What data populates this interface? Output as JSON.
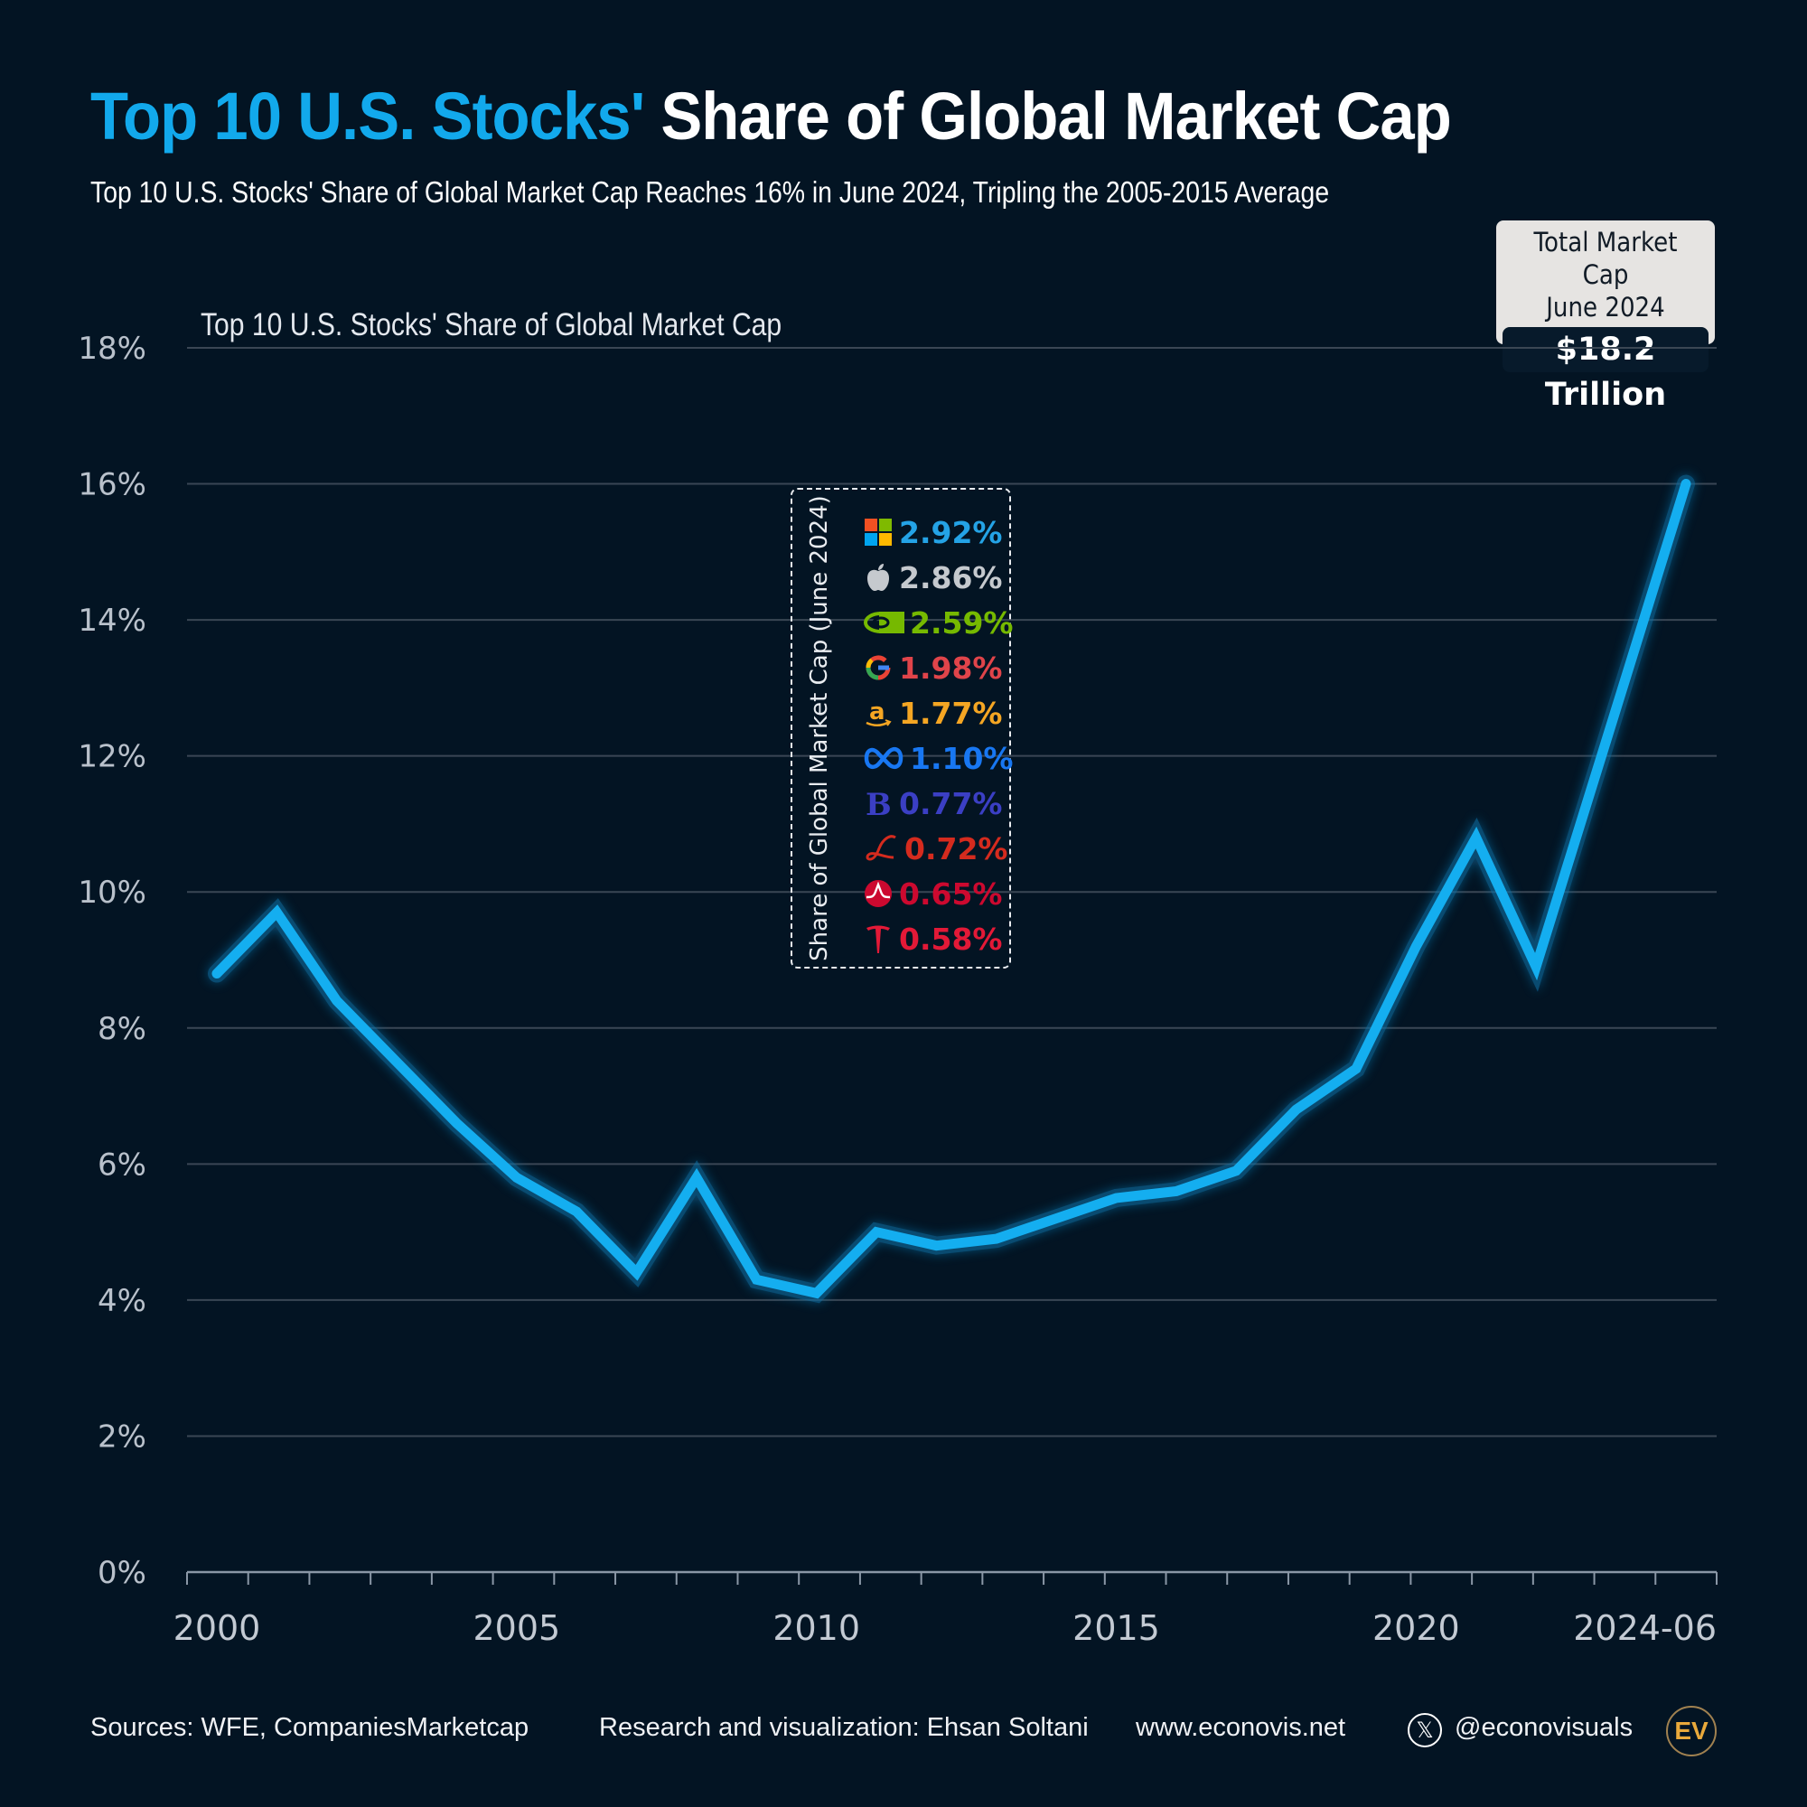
{
  "header": {
    "title_accent": "Top 10 U.S. Stocks'",
    "title_rest": "Share of Global Market Cap",
    "subtitle": "Top 10 U.S. Stocks' Share of Global Market Cap Reaches 16% in June 2024, Tripling the 2005-2015 Average"
  },
  "total_box": {
    "label_line1": "Total Market Cap",
    "label_line2": "June 2024",
    "value": "$18.2 Trillion"
  },
  "legend": {
    "title": "Share of Global Market Cap (June 2024)",
    "items": [
      {
        "company": "Microsoft",
        "icon": "microsoft-logo-icon",
        "value": "2.92%",
        "color": "#24a3e6"
      },
      {
        "company": "Apple",
        "icon": "apple-logo-icon",
        "value": "2.86%",
        "color": "#c5c9ce"
      },
      {
        "company": "Nvidia",
        "icon": "nvidia-logo-icon",
        "value": "2.59%",
        "color": "#76b900"
      },
      {
        "company": "Alphabet",
        "icon": "google-logo-icon",
        "value": "1.98%",
        "color": "#e0444a"
      },
      {
        "company": "Amazon",
        "icon": "amazon-logo-icon",
        "value": "1.77%",
        "color": "#f5a623"
      },
      {
        "company": "Meta",
        "icon": "meta-logo-icon",
        "value": "1.10%",
        "color": "#1877f2"
      },
      {
        "company": "Berkshire Hathaway",
        "icon": "berkshire-logo-icon",
        "value": "0.77%",
        "color": "#3b3fc4"
      },
      {
        "company": "Eli Lilly",
        "icon": "eli-lilly-logo-icon",
        "value": "0.72%",
        "color": "#d52b1e"
      },
      {
        "company": "Broadcom",
        "icon": "broadcom-logo-icon",
        "value": "0.65%",
        "color": "#cc092f"
      },
      {
        "company": "Tesla",
        "icon": "tesla-logo-icon",
        "value": "0.58%",
        "color": "#e31937"
      }
    ]
  },
  "footer": {
    "sources": "Sources: WFE, CompaniesMarketcap",
    "credit": "Research and visualization: Ehsan Soltani",
    "website": "www.econovis.net",
    "social_icon": "x-logo-icon",
    "social_handle": "@econovisuals",
    "brand_logo": "EV"
  },
  "colors": {
    "background": "#031423",
    "accent": "#12a9ec",
    "line": "#14aef0",
    "grid": "#3a4654"
  },
  "chart_data": {
    "type": "line",
    "title": "Top 10 U.S. Stocks' Share of Global Market Cap",
    "xlabel": "",
    "ylabel": "",
    "x": [
      2000,
      2001,
      2002,
      2003,
      2004,
      2005,
      2006,
      2007,
      2008,
      2009,
      2010,
      2011,
      2012,
      2013,
      2014,
      2015,
      2016,
      2017,
      2018,
      2019,
      2020,
      2021,
      2022,
      2024.5
    ],
    "series": [
      {
        "name": "Top 10 U.S. Stocks' Share of Global Market Cap",
        "values": [
          8.8,
          9.7,
          8.4,
          7.5,
          6.6,
          5.8,
          5.3,
          4.4,
          5.8,
          4.3,
          4.1,
          5.0,
          4.8,
          4.9,
          5.2,
          5.5,
          5.6,
          5.9,
          6.8,
          7.4,
          9.2,
          10.8,
          8.9,
          16.0
        ]
      }
    ],
    "x_ticks": [
      2000,
      2005,
      2010,
      2015,
      2020,
      2024.5
    ],
    "x_tick_labels": [
      "2000",
      "2005",
      "2010",
      "2015",
      "2020",
      "2024-06"
    ],
    "xlim": [
      2000,
      2024.5
    ],
    "y_ticks": [
      0,
      2,
      4,
      6,
      8,
      10,
      12,
      14,
      16,
      18
    ],
    "y_tick_labels": [
      "0%",
      "2%",
      "4%",
      "6%",
      "8%",
      "10%",
      "12%",
      "14%",
      "16%",
      "18%"
    ],
    "ylim": [
      0,
      18
    ],
    "grid": true,
    "legend": "none"
  }
}
